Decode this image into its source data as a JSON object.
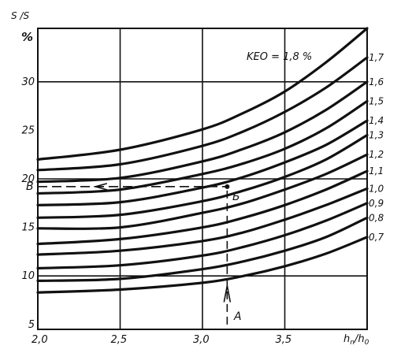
{
  "chart_data": {
    "type": "line",
    "y_top_label": "S /S",
    "ylabel": "%",
    "xlabel": "h",
    "xlabel_sub_n": "n",
    "xlabel_sub_0": "0",
    "x_ticks": [
      "2,0",
      "2,5",
      "3,0",
      "3,5"
    ],
    "y_ticks": [
      "5",
      "10",
      "15",
      "20",
      "25",
      "30"
    ],
    "xlim": [
      2.0,
      4.0
    ],
    "ylim": [
      4.5,
      35.5
    ],
    "grid": true,
    "annotation": "KEO = 1,8 %",
    "point_labels": {
      "A": "A",
      "B": "Б",
      "V": "В"
    },
    "series": [
      {
        "name": "0,7",
        "x": [
          2.0,
          2.5,
          3.0,
          3.25,
          3.5,
          3.75,
          4.0
        ],
        "values": [
          8.3,
          8.6,
          9.3,
          10.0,
          11.0,
          12.3,
          14.0
        ]
      },
      {
        "name": "0,8",
        "x": [
          2.0,
          2.5,
          3.0,
          3.25,
          3.5,
          3.75,
          4.0
        ],
        "values": [
          9.5,
          9.7,
          10.7,
          11.5,
          12.6,
          14.0,
          16.0
        ]
      },
      {
        "name": "0,9",
        "x": [
          2.0,
          2.5,
          3.0,
          3.25,
          3.5,
          3.75,
          4.0
        ],
        "values": [
          10.8,
          11.1,
          12.1,
          13.0,
          14.2,
          15.7,
          17.5
        ]
      },
      {
        "name": "1,0",
        "x": [
          2.0,
          2.5,
          3.0,
          3.25,
          3.5,
          3.75,
          4.0
        ],
        "values": [
          12.2,
          12.6,
          13.6,
          14.5,
          15.8,
          17.3,
          19.0
        ]
      },
      {
        "name": "1,1",
        "x": [
          2.0,
          2.5,
          3.0,
          3.25,
          3.5,
          3.75,
          4.0
        ],
        "values": [
          13.3,
          13.8,
          15.0,
          16.0,
          17.3,
          18.9,
          20.8
        ]
      },
      {
        "name": "1,2",
        "x": [
          2.0,
          2.5,
          3.0,
          3.25,
          3.5,
          3.75,
          4.0
        ],
        "values": [
          14.9,
          15.0,
          16.5,
          17.5,
          18.9,
          20.5,
          22.5
        ]
      },
      {
        "name": "1,3",
        "x": [
          2.0,
          2.5,
          3.0,
          3.25,
          3.5,
          3.75,
          4.0
        ],
        "values": [
          16.0,
          16.3,
          17.7,
          18.8,
          20.2,
          22.0,
          24.5
        ]
      },
      {
        "name": "1,4",
        "x": [
          2.0,
          2.5,
          3.0,
          3.25,
          3.5,
          3.75,
          4.0
        ],
        "values": [
          17.3,
          17.6,
          19.1,
          20.2,
          21.7,
          23.5,
          26.0
        ]
      },
      {
        "name": "1,5",
        "x": [
          2.0,
          2.5,
          3.0,
          3.25,
          3.5,
          3.75,
          4.0
        ],
        "values": [
          18.5,
          18.9,
          20.5,
          21.6,
          23.1,
          25.2,
          28.0
        ]
      },
      {
        "name": "1,6",
        "x": [
          2.0,
          2.5,
          3.0,
          3.25,
          3.5,
          3.75,
          4.0
        ],
        "values": [
          19.7,
          20.1,
          21.8,
          23.1,
          24.8,
          27.1,
          30.0
        ]
      },
      {
        "name": "1,7",
        "x": [
          2.0,
          2.5,
          3.0,
          3.25,
          3.5,
          3.75,
          4.0
        ],
        "values": [
          20.9,
          21.5,
          23.4,
          24.9,
          26.9,
          29.4,
          32.5
        ]
      },
      {
        "name": "",
        "x": [
          2.0,
          2.5,
          3.0,
          3.25,
          3.5,
          3.75,
          4.0
        ],
        "values": [
          22.0,
          23.0,
          25.1,
          26.8,
          29.0,
          32.0,
          35.5
        ]
      }
    ],
    "construction": {
      "point_A": {
        "x": 3.15,
        "y": 5.0
      },
      "point_B": {
        "x": 3.15,
        "y": 19.2
      },
      "level_y": 19.2
    }
  }
}
